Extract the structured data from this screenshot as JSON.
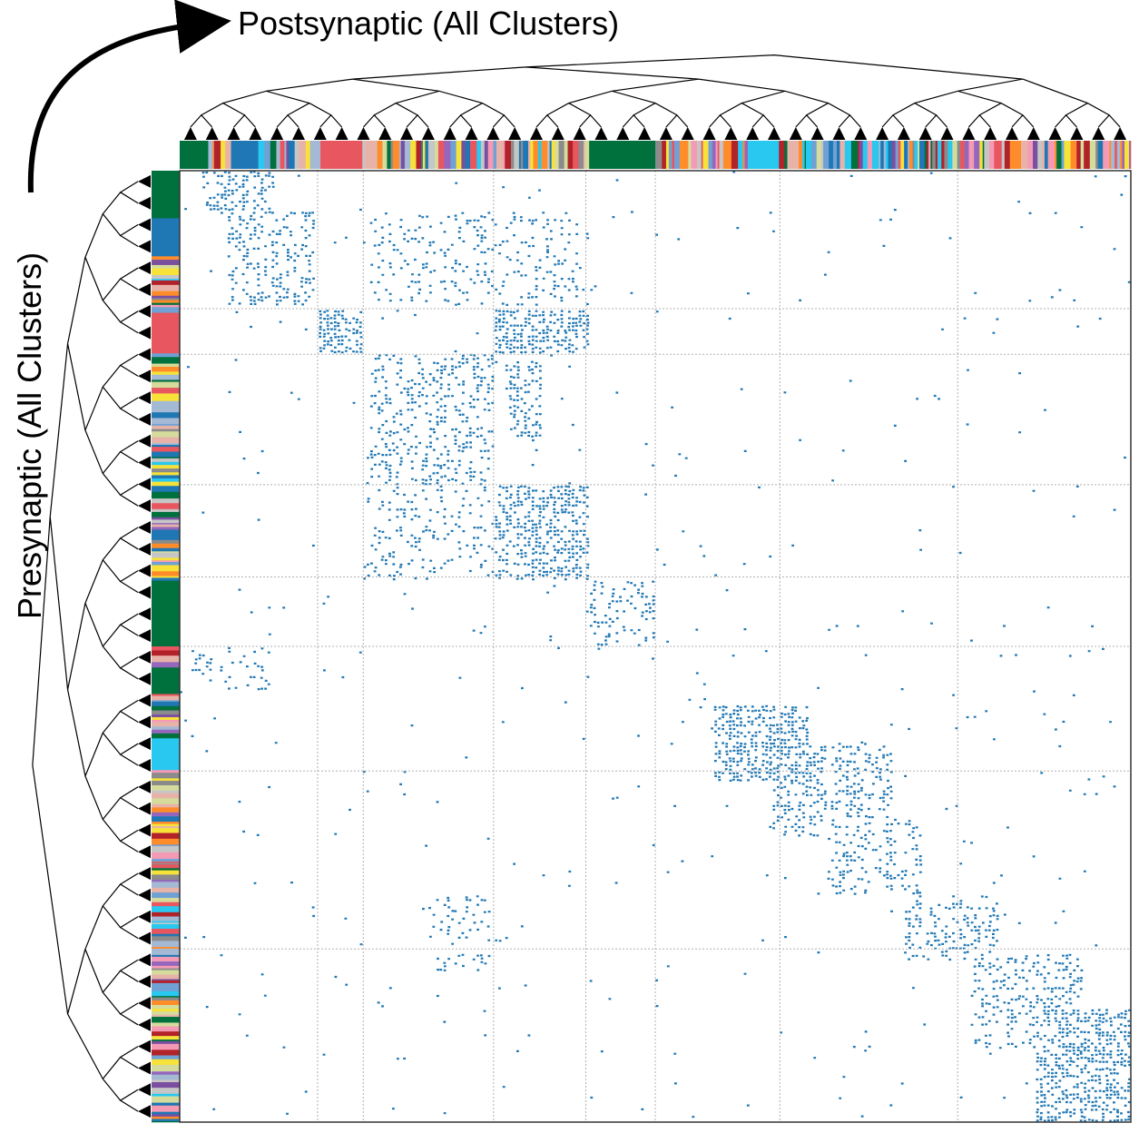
{
  "chart_data": {
    "type": "heatmap",
    "title": "",
    "xlabel": "Postsynaptic (All Clusters)",
    "ylabel": "Presynaptic (All Clusters)",
    "cell_color": "#1f77b4",
    "grid": true,
    "grid_color": "#b0b0b0",
    "dendrograms": [
      "top",
      "left"
    ],
    "block_boundaries": [
      0.145,
      0.193,
      0.33,
      0.427,
      0.5,
      0.631,
      0.818
    ],
    "cluster_palette": [
      "#00703c",
      "#1f77b4",
      "#e8565f",
      "#d5dc9b",
      "#8b8b8b",
      "#a4b9d4",
      "#f59ab5",
      "#9467bd",
      "#f7e23a",
      "#ff8c2a",
      "#28c8f0",
      "#b22229",
      "#e7b3a8",
      "#c6c6c6",
      "#7b4fa0",
      "#6fa1d4"
    ],
    "dense_blocks": [
      {
        "rows": [
          0.0,
          0.04
        ],
        "cols": [
          0.02,
          0.1
        ],
        "density": 0.35
      },
      {
        "rows": [
          0.04,
          0.14
        ],
        "cols": [
          0.05,
          0.14
        ],
        "density": 0.3
      },
      {
        "rows": [
          0.04,
          0.14
        ],
        "cols": [
          0.2,
          0.43
        ],
        "density": 0.18
      },
      {
        "rows": [
          0.145,
          0.192
        ],
        "cols": [
          0.145,
          0.192
        ],
        "density": 0.7
      },
      {
        "rows": [
          0.145,
          0.192
        ],
        "cols": [
          0.33,
          0.427
        ],
        "density": 0.6
      },
      {
        "rows": [
          0.19,
          0.33
        ],
        "cols": [
          0.2,
          0.33
        ],
        "density": 0.28
      },
      {
        "rows": [
          0.2,
          0.28
        ],
        "cols": [
          0.34,
          0.38
        ],
        "density": 0.4
      },
      {
        "rows": [
          0.33,
          0.43
        ],
        "cols": [
          0.33,
          0.43
        ],
        "density": 0.5
      },
      {
        "rows": [
          0.33,
          0.43
        ],
        "cols": [
          0.19,
          0.33
        ],
        "density": 0.16
      },
      {
        "rows": [
          0.43,
          0.5
        ],
        "cols": [
          0.43,
          0.5
        ],
        "density": 0.25
      },
      {
        "rows": [
          0.5,
          0.55
        ],
        "cols": [
          0.0,
          0.1
        ],
        "density": 0.12
      },
      {
        "rows": [
          0.56,
          0.64
        ],
        "cols": [
          0.56,
          0.66
        ],
        "density": 0.55
      },
      {
        "rows": [
          0.6,
          0.7
        ],
        "cols": [
          0.62,
          0.75
        ],
        "density": 0.3
      },
      {
        "rows": [
          0.68,
          0.76
        ],
        "cols": [
          0.68,
          0.78
        ],
        "density": 0.25
      },
      {
        "rows": [
          0.76,
          0.83
        ],
        "cols": [
          0.76,
          0.86
        ],
        "density": 0.28
      },
      {
        "rows": [
          0.82,
          0.92
        ],
        "cols": [
          0.83,
          0.95
        ],
        "density": 0.3
      },
      {
        "rows": [
          0.88,
          1.0
        ],
        "cols": [
          0.9,
          1.0
        ],
        "density": 0.5
      },
      {
        "rows": [
          0.76,
          0.84
        ],
        "cols": [
          0.26,
          0.33
        ],
        "density": 0.14
      }
    ]
  }
}
